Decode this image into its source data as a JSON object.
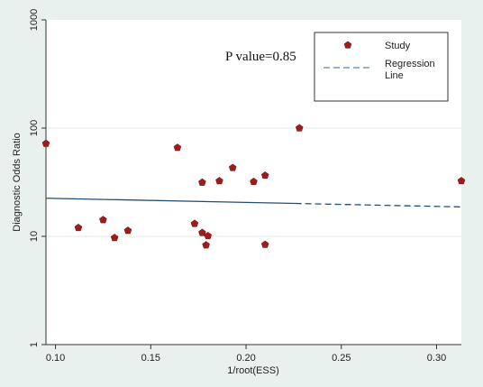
{
  "chart_data": {
    "type": "scatter",
    "xlabel": "1/root(ESS)",
    "ylabel": "Diagnostic Odds Ratio",
    "xlim": [
      0.095,
      0.313
    ],
    "ylim": [
      1,
      1000
    ],
    "y_scale": "log",
    "x_ticks": [
      "0.10",
      "0.15",
      "0.20",
      "0.25",
      "0.30"
    ],
    "x_tick_values": [
      0.1,
      0.15,
      0.2,
      0.25,
      0.3
    ],
    "y_ticks": [
      "1",
      "10",
      "100",
      "1000"
    ],
    "y_tick_values": [
      1,
      10,
      100,
      1000
    ],
    "grid": "horizontal",
    "annotation": "P value=0.85",
    "legend": {
      "position": "top-right",
      "entries": [
        {
          "label": "Study",
          "marker": "pentagon",
          "color": "#a01c1c"
        },
        {
          "label": "Regression Line",
          "marker": "dashed-line",
          "color": "#7d99b5"
        }
      ]
    },
    "series": [
      {
        "name": "Study",
        "points": [
          {
            "x": 0.095,
            "y": 72
          },
          {
            "x": 0.112,
            "y": 12
          },
          {
            "x": 0.125,
            "y": 14.2
          },
          {
            "x": 0.131,
            "y": 9.7
          },
          {
            "x": 0.138,
            "y": 11.3
          },
          {
            "x": 0.164,
            "y": 66
          },
          {
            "x": 0.173,
            "y": 13.1
          },
          {
            "x": 0.177,
            "y": 31.5
          },
          {
            "x": 0.177,
            "y": 10.8
          },
          {
            "x": 0.179,
            "y": 8.3
          },
          {
            "x": 0.18,
            "y": 10.1
          },
          {
            "x": 0.186,
            "y": 32.5
          },
          {
            "x": 0.193,
            "y": 43
          },
          {
            "x": 0.204,
            "y": 32
          },
          {
            "x": 0.21,
            "y": 36.5
          },
          {
            "x": 0.21,
            "y": 8.4
          },
          {
            "x": 0.228,
            "y": 100
          },
          {
            "x": 0.313,
            "y": 32.5
          }
        ]
      },
      {
        "name": "Regression Line",
        "line": [
          {
            "x": 0.095,
            "y": 22.5
          },
          {
            "x": 0.313,
            "y": 18.7
          }
        ]
      }
    ],
    "colors": {
      "background": "#e9f1ef",
      "plot_area": "#ffffff",
      "marker": "#a01c1c",
      "line_solid": "#1f4e79",
      "line_dashed": "#7d99b5",
      "grid": "#e2e8e6"
    }
  }
}
